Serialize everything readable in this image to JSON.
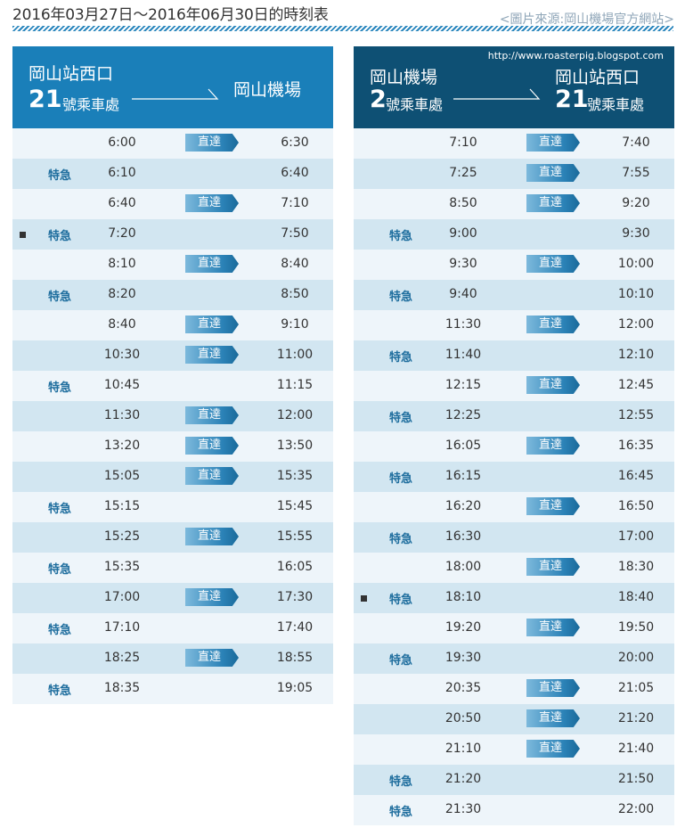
{
  "title": "2016年03月27日～2016年06月30日的時刻表",
  "source": "<圖片來源:岡山機場官方網站>",
  "watermark": "http://www.roasterpig.blogspot.com",
  "left": {
    "from_name": "岡山站西口",
    "from_num": "21",
    "from_unit": "號乘車處",
    "to_name": "岡山機場",
    "rows": [
      {
        "mark": false,
        "kind": "",
        "dep": "6:00",
        "badge": "直達",
        "arr": "6:30"
      },
      {
        "mark": false,
        "kind": "特急",
        "dep": "6:10",
        "badge": "",
        "arr": "6:40"
      },
      {
        "mark": false,
        "kind": "",
        "dep": "6:40",
        "badge": "直達",
        "arr": "7:10"
      },
      {
        "mark": true,
        "kind": "特急",
        "dep": "7:20",
        "badge": "",
        "arr": "7:50"
      },
      {
        "mark": false,
        "kind": "",
        "dep": "8:10",
        "badge": "直達",
        "arr": "8:40"
      },
      {
        "mark": false,
        "kind": "特急",
        "dep": "8:20",
        "badge": "",
        "arr": "8:50"
      },
      {
        "mark": false,
        "kind": "",
        "dep": "8:40",
        "badge": "直達",
        "arr": "9:10"
      },
      {
        "mark": false,
        "kind": "",
        "dep": "10:30",
        "badge": "直達",
        "arr": "11:00"
      },
      {
        "mark": false,
        "kind": "特急",
        "dep": "10:45",
        "badge": "",
        "arr": "11:15"
      },
      {
        "mark": false,
        "kind": "",
        "dep": "11:30",
        "badge": "直達",
        "arr": "12:00"
      },
      {
        "mark": false,
        "kind": "",
        "dep": "13:20",
        "badge": "直達",
        "arr": "13:50"
      },
      {
        "mark": false,
        "kind": "",
        "dep": "15:05",
        "badge": "直達",
        "arr": "15:35"
      },
      {
        "mark": false,
        "kind": "特急",
        "dep": "15:15",
        "badge": "",
        "arr": "15:45"
      },
      {
        "mark": false,
        "kind": "",
        "dep": "15:25",
        "badge": "直達",
        "arr": "15:55"
      },
      {
        "mark": false,
        "kind": "特急",
        "dep": "15:35",
        "badge": "",
        "arr": "16:05"
      },
      {
        "mark": false,
        "kind": "",
        "dep": "17:00",
        "badge": "直達",
        "arr": "17:30"
      },
      {
        "mark": false,
        "kind": "特急",
        "dep": "17:10",
        "badge": "",
        "arr": "17:40"
      },
      {
        "mark": false,
        "kind": "",
        "dep": "18:25",
        "badge": "直達",
        "arr": "18:55"
      },
      {
        "mark": false,
        "kind": "特急",
        "dep": "18:35",
        "badge": "",
        "arr": "19:05"
      }
    ]
  },
  "right": {
    "from_name": "岡山機場",
    "from_num": "2",
    "from_unit": "號乘車處",
    "to_name": "岡山站西口",
    "to_num": "21",
    "to_unit": "號乘車處",
    "rows": [
      {
        "mark": false,
        "kind": "",
        "dep": "7:10",
        "badge": "直達",
        "arr": "7:40"
      },
      {
        "mark": false,
        "kind": "",
        "dep": "7:25",
        "badge": "直達",
        "arr": "7:55"
      },
      {
        "mark": false,
        "kind": "",
        "dep": "8:50",
        "badge": "直達",
        "arr": "9:20"
      },
      {
        "mark": false,
        "kind": "特急",
        "dep": "9:00",
        "badge": "",
        "arr": "9:30"
      },
      {
        "mark": false,
        "kind": "",
        "dep": "9:30",
        "badge": "直達",
        "arr": "10:00"
      },
      {
        "mark": false,
        "kind": "特急",
        "dep": "9:40",
        "badge": "",
        "arr": "10:10"
      },
      {
        "mark": false,
        "kind": "",
        "dep": "11:30",
        "badge": "直達",
        "arr": "12:00"
      },
      {
        "mark": false,
        "kind": "特急",
        "dep": "11:40",
        "badge": "",
        "arr": "12:10"
      },
      {
        "mark": false,
        "kind": "",
        "dep": "12:15",
        "badge": "直達",
        "arr": "12:45"
      },
      {
        "mark": false,
        "kind": "特急",
        "dep": "12:25",
        "badge": "",
        "arr": "12:55"
      },
      {
        "mark": false,
        "kind": "",
        "dep": "16:05",
        "badge": "直達",
        "arr": "16:35"
      },
      {
        "mark": false,
        "kind": "特急",
        "dep": "16:15",
        "badge": "",
        "arr": "16:45"
      },
      {
        "mark": false,
        "kind": "",
        "dep": "16:20",
        "badge": "直達",
        "arr": "16:50"
      },
      {
        "mark": false,
        "kind": "特急",
        "dep": "16:30",
        "badge": "",
        "arr": "17:00"
      },
      {
        "mark": false,
        "kind": "",
        "dep": "18:00",
        "badge": "直達",
        "arr": "18:30"
      },
      {
        "mark": true,
        "kind": "特急",
        "dep": "18:10",
        "badge": "",
        "arr": "18:40"
      },
      {
        "mark": false,
        "kind": "",
        "dep": "19:20",
        "badge": "直達",
        "arr": "19:50"
      },
      {
        "mark": false,
        "kind": "特急",
        "dep": "19:30",
        "badge": "",
        "arr": "20:00"
      },
      {
        "mark": false,
        "kind": "",
        "dep": "20:35",
        "badge": "直達",
        "arr": "21:05"
      },
      {
        "mark": false,
        "kind": "",
        "dep": "20:50",
        "badge": "直達",
        "arr": "21:20"
      },
      {
        "mark": false,
        "kind": "",
        "dep": "21:10",
        "badge": "直達",
        "arr": "21:40"
      },
      {
        "mark": false,
        "kind": "特急",
        "dep": "21:20",
        "badge": "",
        "arr": "21:50"
      },
      {
        "mark": false,
        "kind": "特急",
        "dep": "21:30",
        "badge": "",
        "arr": "22:00"
      }
    ]
  }
}
